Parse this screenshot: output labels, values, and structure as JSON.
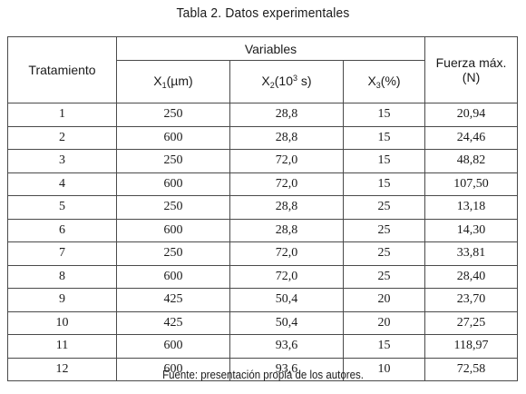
{
  "title": "Tabla 2. Datos experimentales",
  "headers": {
    "treatment": "Tratamiento",
    "variables": "Variables",
    "x1": {
      "name": "X",
      "sub": "1",
      "unit": "(µm)"
    },
    "x2": {
      "name": "X",
      "sub": "2",
      "unit_pre": "(10",
      "sup": "3",
      "unit_post": " s)"
    },
    "x3": {
      "name": "X",
      "sub": "3",
      "unit": "(%)"
    },
    "force": "Fuerza máx. (N)"
  },
  "rows": [
    [
      "1",
      "250",
      "28,8",
      "15",
      "20,94"
    ],
    [
      "2",
      "600",
      "28,8",
      "15",
      "24,46"
    ],
    [
      "3",
      "250",
      "72,0",
      "15",
      "48,82"
    ],
    [
      "4",
      "600",
      "72,0",
      "15",
      "107,50"
    ],
    [
      "5",
      "250",
      "28,8",
      "25",
      "13,18"
    ],
    [
      "6",
      "600",
      "28,8",
      "25",
      "14,30"
    ],
    [
      "7",
      "250",
      "72,0",
      "25",
      "33,81"
    ],
    [
      "8",
      "600",
      "72,0",
      "25",
      "28,40"
    ],
    [
      "9",
      "425",
      "50,4",
      "20",
      "23,70"
    ],
    [
      "10",
      "425",
      "50,4",
      "20",
      "27,25"
    ],
    [
      "11",
      "600",
      "93,6",
      "15",
      "118,97"
    ],
    [
      "12",
      "600",
      "93,6",
      "10",
      "72,58"
    ]
  ],
  "footer": "Fuente: presentación propia de los autores."
}
